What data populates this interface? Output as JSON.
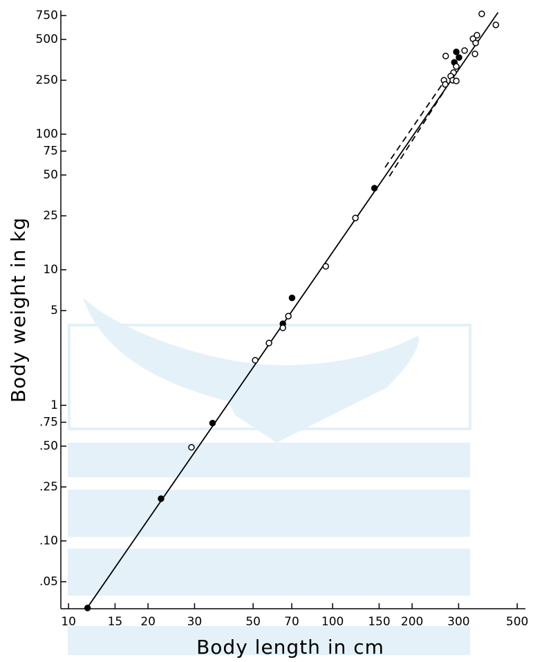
{
  "chart_data": {
    "type": "scatter",
    "x_label": "Body length in cm",
    "y_label": "Body weight in kg",
    "xscale": "log",
    "yscale": "log",
    "xlim": [
      9.35,
      537
    ],
    "ylim": [
      0.0316,
      819
    ],
    "xticks": [
      10,
      15,
      20,
      30,
      50,
      70,
      100,
      150,
      200,
      300,
      500
    ],
    "yticks": [
      750,
      500,
      250,
      100,
      75,
      50,
      25,
      10,
      5,
      1,
      {
        "value": 0.75,
        "label": ".75"
      },
      {
        "value": 0.5,
        "label": ".50"
      },
      {
        "value": 0.25,
        "label": ".25"
      },
      {
        "value": 0.1,
        "label": ".10"
      },
      {
        "value": 0.05,
        "label": ".05"
      }
    ],
    "series": [
      {
        "marker": "filled",
        "color": "#000000",
        "x": [
          11.8,
          22.4,
          35.1,
          64.8,
          70.2,
          144,
          294,
          301,
          289
        ],
        "values": [
          0.032,
          0.205,
          0.74,
          4.0,
          6.2,
          40,
          405,
          368,
          339
        ]
      },
      {
        "marker": "open",
        "color": "#000000",
        "x": [
          29.2,
          50.9,
          57.4,
          64.8,
          68,
          94.2,
          122,
          367,
          415,
          268,
          316,
          340,
          352,
          348,
          346,
          294,
          287,
          280,
          264,
          285,
          294,
          267
        ],
        "values": [
          0.49,
          2.15,
          2.88,
          3.73,
          4.55,
          10.6,
          24.1,
          772,
          640,
          377,
          414,
          506,
          537,
          471,
          391,
          316,
          285,
          268,
          250,
          250,
          247,
          233
        ]
      }
    ],
    "lines": [
      {
        "style": "solid",
        "color": "#000000",
        "x": [
          11.9,
          423
        ],
        "values": [
          0.0331,
          791
        ]
      },
      {
        "style": "dashed",
        "color": "#000000",
        "x": [
          158,
          261
        ],
        "values": [
          56.9,
          236
        ]
      },
      {
        "style": "dashed",
        "color": "#000000",
        "x": [
          164,
          268
        ],
        "values": [
          48.9,
          217
        ]
      }
    ]
  }
}
